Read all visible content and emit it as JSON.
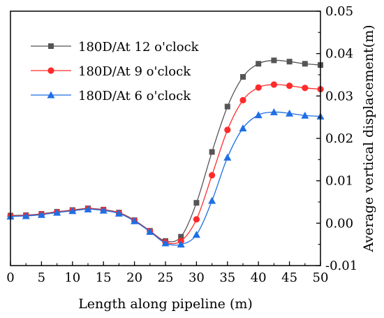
{
  "chart_data": {
    "type": "line",
    "title": "",
    "xlabel": "Length along pipeline (m)",
    "ylabel": "Average vertical displacement(m)",
    "y_axis_side": "right",
    "xlim": [
      0,
      50
    ],
    "ylim": [
      -0.01,
      0.05
    ],
    "xticks": [
      0,
      5,
      10,
      15,
      20,
      25,
      30,
      35,
      40,
      45,
      50
    ],
    "yticks": [
      -0.01,
      0.0,
      0.01,
      0.02,
      0.03,
      0.04,
      0.05
    ],
    "xtick_labels": [
      "0",
      "5",
      "10",
      "15",
      "20",
      "25",
      "30",
      "35",
      "40",
      "45",
      "50"
    ],
    "ytick_labels": [
      "-0.01",
      "0.00",
      "0.01",
      "0.02",
      "0.03",
      "0.04",
      "0.05"
    ],
    "grid": false,
    "legend_position": "top-left",
    "series": [
      {
        "name": "180D/At 12 o'clock",
        "color": "#555555",
        "marker": "square",
        "points": [
          [
            0,
            0.0018
          ],
          [
            2.5,
            0.0019
          ],
          [
            5,
            0.0022
          ],
          [
            7.5,
            0.0027
          ],
          [
            10,
            0.0031
          ],
          [
            12.5,
            0.0035
          ],
          [
            15,
            0.0032
          ],
          [
            17.5,
            0.0025
          ],
          [
            20,
            0.0007
          ],
          [
            22.5,
            -0.0018
          ],
          [
            25,
            -0.0042
          ],
          [
            27.5,
            -0.0032
          ],
          [
            30,
            0.0048
          ],
          [
            32.5,
            0.0168
          ],
          [
            35,
            0.0275
          ],
          [
            37.5,
            0.0345
          ],
          [
            40,
            0.0376
          ],
          [
            42.5,
            0.0384
          ],
          [
            45,
            0.0381
          ],
          [
            47.5,
            0.0376
          ],
          [
            50,
            0.0373
          ]
        ]
      },
      {
        "name": "180D/At 9 o'clock",
        "color": "#ff2a2a",
        "marker": "circle",
        "points": [
          [
            0,
            0.0017
          ],
          [
            2.5,
            0.0018
          ],
          [
            5,
            0.0021
          ],
          [
            7.5,
            0.0026
          ],
          [
            10,
            0.003
          ],
          [
            12.5,
            0.0034
          ],
          [
            15,
            0.0031
          ],
          [
            17.5,
            0.0024
          ],
          [
            20,
            0.0006
          ],
          [
            22.5,
            -0.0019
          ],
          [
            25,
            -0.0045
          ],
          [
            27.5,
            -0.0042
          ],
          [
            30,
            0.0009
          ],
          [
            32.5,
            0.0113
          ],
          [
            35,
            0.022
          ],
          [
            37.5,
            0.029
          ],
          [
            40,
            0.032
          ],
          [
            42.5,
            0.0327
          ],
          [
            45,
            0.0324
          ],
          [
            47.5,
            0.0319
          ],
          [
            50,
            0.0316
          ]
        ]
      },
      {
        "name": "180D/At 6 o'clock",
        "color": "#1f6fe5",
        "marker": "triangle",
        "points": [
          [
            0,
            0.0016
          ],
          [
            2.5,
            0.0017
          ],
          [
            5,
            0.002
          ],
          [
            7.5,
            0.0025
          ],
          [
            10,
            0.0029
          ],
          [
            12.5,
            0.0033
          ],
          [
            15,
            0.003
          ],
          [
            17.5,
            0.0023
          ],
          [
            20,
            0.0005
          ],
          [
            22.5,
            -0.002
          ],
          [
            25,
            -0.0047
          ],
          [
            27.5,
            -0.005
          ],
          [
            30,
            -0.0027
          ],
          [
            32.5,
            0.0053
          ],
          [
            35,
            0.0155
          ],
          [
            37.5,
            0.0224
          ],
          [
            40,
            0.0255
          ],
          [
            42.5,
            0.0262
          ],
          [
            45,
            0.0259
          ],
          [
            47.5,
            0.0254
          ],
          [
            50,
            0.0252
          ]
        ]
      }
    ]
  }
}
